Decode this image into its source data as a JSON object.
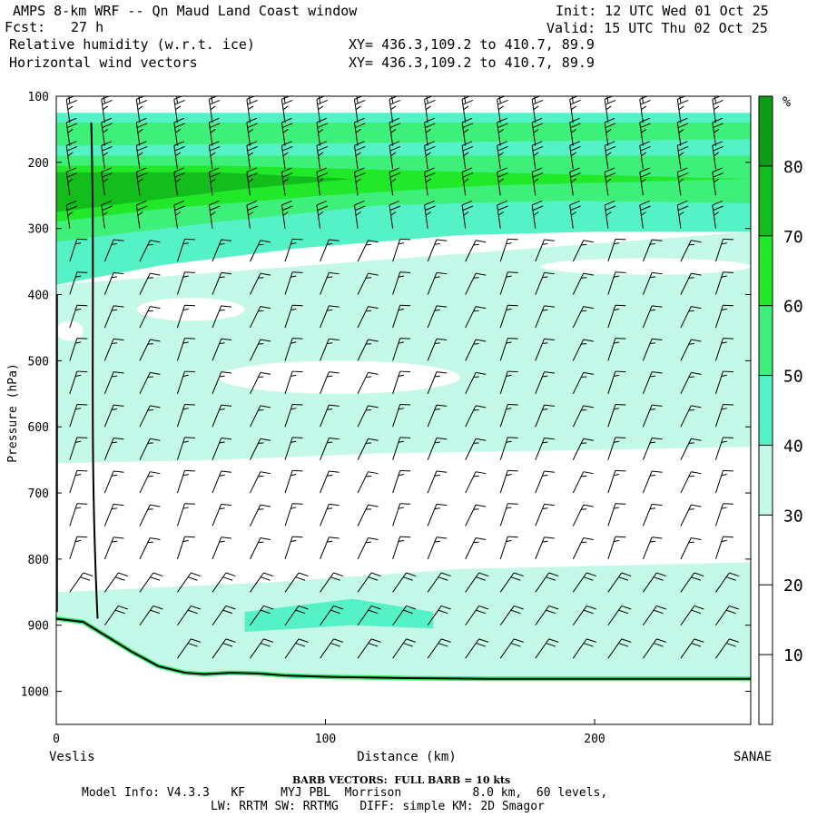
{
  "header": {
    "title": "AMPS 8-km WRF -- Qn Maud Land Coast window",
    "fcst_label": "Fcst:",
    "fcst_value": "27 h",
    "init": "Init: 12 UTC Wed 01 Oct 25",
    "valid": "Valid: 15 UTC Thu 02 Oct 25",
    "field1": "Relative humidity (w.r.t. ice)",
    "field2": "Horizontal wind vectors",
    "xy1": "XY= 436.3,109.2 to 410.7, 89.9",
    "xy2": "XY= 436.3,109.2 to 410.7, 89.9"
  },
  "footer": {
    "barb_note": "BARB VECTORS:  FULL BARB = 10 kts",
    "model_info_1": "Model Info: V4.3.3   KF     MYJ PBL  Morrison          8.0 km,  60 levels,",
    "model_info_2": "LW: RRTM SW: RRTMG   DIFF: simple KM: 2D Smagor"
  },
  "chart_data": {
    "type": "heatmap",
    "title": "Relative humidity (w.r.t. ice)",
    "ylabel": "Pressure (hPa)",
    "xlabel": "Distance (km)",
    "x_start_label": "Veslis",
    "x_end_label": "SANAE",
    "xlim": [
      0,
      258
    ],
    "ylim": [
      1050,
      100
    ],
    "x_ticks": [
      0,
      100,
      200
    ],
    "y_ticks": [
      100,
      200,
      300,
      400,
      500,
      600,
      700,
      800,
      900,
      1000
    ],
    "colorbar": {
      "unit": "%",
      "levels": [
        10,
        20,
        30,
        40,
        50,
        60,
        70,
        80
      ],
      "colors": [
        "#ffffff",
        "#ffffff",
        "#ffffff",
        "#c4f8e8",
        "#54f2c6",
        "#3ef07a",
        "#22e82a",
        "#12bd1c",
        "#0d9c12"
      ]
    },
    "terrain_pressure": [
      [
        0,
        890
      ],
      [
        10,
        895
      ],
      [
        18,
        915
      ],
      [
        28,
        940
      ],
      [
        38,
        962
      ],
      [
        48,
        972
      ],
      [
        55,
        974
      ],
      [
        65,
        972
      ],
      [
        75,
        973
      ],
      [
        85,
        976
      ],
      [
        100,
        978
      ],
      [
        130,
        980
      ],
      [
        160,
        981
      ],
      [
        200,
        981
      ],
      [
        258,
        981
      ]
    ],
    "rh_bands": [
      {
        "level": 40,
        "top": [
          [
            0,
            125
          ],
          [
            258,
            125
          ]
        ],
        "bottom": [
          [
            0,
            230
          ],
          [
            60,
            225
          ],
          [
            120,
            225
          ],
          [
            180,
            220
          ],
          [
            258,
            215
          ]
        ]
      },
      {
        "level": 50,
        "top": [
          [
            0,
            140
          ],
          [
            258,
            140
          ]
        ],
        "bottom": [
          [
            0,
            175
          ],
          [
            258,
            165
          ]
        ]
      },
      {
        "level": 40,
        "top": [
          [
            0,
            230
          ],
          [
            258,
            215
          ]
        ],
        "bottom": [
          [
            0,
            385
          ],
          [
            40,
            355
          ],
          [
            90,
            330
          ],
          [
            150,
            310
          ],
          [
            200,
            305
          ],
          [
            258,
            305
          ]
        ]
      },
      {
        "level": 50,
        "top": [
          [
            0,
            190
          ],
          [
            258,
            190
          ]
        ],
        "bottom": [
          [
            0,
            320
          ],
          [
            60,
            290
          ],
          [
            120,
            265
          ],
          [
            190,
            258
          ],
          [
            258,
            262
          ]
        ]
      },
      {
        "level": 60,
        "top": [
          [
            0,
            205
          ],
          [
            60,
            205
          ]
        ],
        "bottom": [
          [
            0,
            290
          ],
          [
            40,
            270
          ],
          [
            100,
            250
          ],
          [
            160,
            235
          ],
          [
            258,
            225
          ]
        ]
      },
      {
        "level": 70,
        "top": [
          [
            0,
            215
          ],
          [
            60,
            215
          ]
        ],
        "bottom": [
          [
            0,
            275
          ],
          [
            30,
            260
          ],
          [
            70,
            240
          ],
          [
            110,
            225
          ]
        ]
      },
      {
        "level": 30,
        "top": [
          [
            0,
            385
          ],
          [
            258,
            305
          ]
        ],
        "bottom": [
          [
            0,
            655
          ],
          [
            60,
            650
          ],
          [
            120,
            640
          ],
          [
            200,
            635
          ],
          [
            258,
            630
          ]
        ]
      },
      {
        "level": 30,
        "top": [
          [
            0,
            850
          ],
          [
            80,
            835
          ],
          [
            150,
            815
          ],
          [
            258,
            805
          ]
        ],
        "bottom": [
          [
            0,
            975
          ],
          [
            258,
            980
          ]
        ]
      },
      {
        "level": 40,
        "top": [
          [
            70,
            880
          ],
          [
            110,
            860
          ],
          [
            140,
            880
          ]
        ],
        "bottom": [
          [
            70,
            910
          ],
          [
            110,
            900
          ],
          [
            140,
            905
          ]
        ]
      }
    ],
    "dry_pockets": [
      {
        "level": 20,
        "x": [
          60,
          150
        ],
        "p": [
          500,
          550
        ]
      },
      {
        "level": 20,
        "x": [
          180,
          258
        ],
        "p": [
          345,
          370
        ]
      },
      {
        "level": 20,
        "x": [
          30,
          70
        ],
        "p": [
          405,
          440
        ]
      },
      {
        "level": 20,
        "x": [
          0,
          10
        ],
        "p": [
          440,
          470
        ]
      }
    ],
    "wind_barbs": {
      "x_columns_km": [
        5,
        18,
        31,
        45,
        58,
        72,
        85,
        98,
        112,
        125,
        138,
        152,
        165,
        178,
        192,
        205,
        218,
        232,
        245
      ],
      "pressure_levels_hPa": [
        110,
        140,
        175,
        210,
        250,
        300,
        350,
        400,
        450,
        500,
        550,
        600,
        650,
        700,
        750,
        800,
        850,
        900,
        950
      ],
      "speed_kts_upper": 25,
      "speed_kts_mid": 15,
      "speed_kts_low": 20
    },
    "streamline_column_km": 14
  }
}
